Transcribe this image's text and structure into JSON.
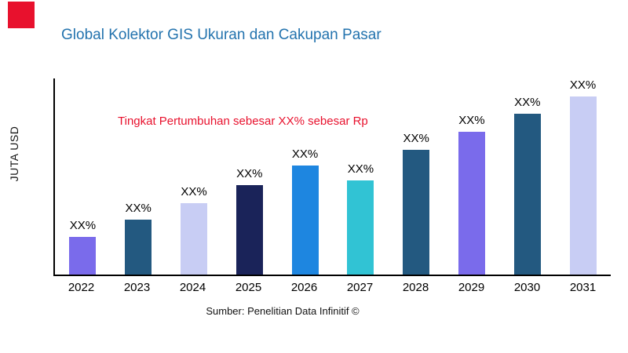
{
  "title": "Global Kolektor GIS Ukuran dan Cakupan Pasar",
  "annotation": "Tingkat Pertumbuhan sebesar XX% sebesar Rp",
  "source": "Sumber: Penelitian Data Infinitif ©",
  "colors": {
    "title": "#2373AE",
    "annotation": "#E8112D",
    "accent_square": "#E8112D"
  },
  "chart_data": {
    "type": "bar",
    "title": "Global Kolektor GIS Ukuran dan Cakupan Pasar",
    "xlabel": "",
    "ylabel": "JUTA USD",
    "categories": [
      "2022",
      "2023",
      "2024",
      "2025",
      "2026",
      "2027",
      "2028",
      "2029",
      "2030",
      "2031"
    ],
    "values": [
      21,
      31,
      40,
      50,
      61,
      53,
      70,
      80,
      90,
      100
    ],
    "bar_labels": [
      "XX%",
      "XX%",
      "XX%",
      "XX%",
      "XX%",
      "XX%",
      "XX%",
      "XX%",
      "XX%",
      "XX%"
    ],
    "bar_colors": [
      "#7A6BEB",
      "#235980",
      "#C8CDF4",
      "#1A2359",
      "#1E86E0",
      "#31C3D4",
      "#235980",
      "#7A6BEB",
      "#235980",
      "#C8CDF4"
    ],
    "ylim": [
      0,
      110
    ],
    "grid": false,
    "legend": false,
    "annotation": "Tingkat Pertumbuhan sebesar XX% sebesar Rp",
    "source": "Sumber: Penelitian Data Infinitif ©"
  }
}
